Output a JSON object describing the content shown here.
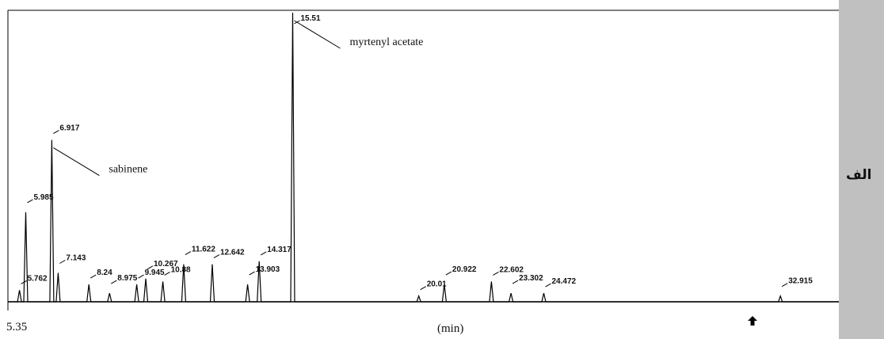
{
  "chart_data": {
    "type": "line",
    "x_start_label": "5.35",
    "x_unit_label": "(min)",
    "panel_label": "الف",
    "peaks": [
      {
        "rt": 5.762,
        "label": "5.762",
        "height": 0.04
      },
      {
        "rt": 5.985,
        "label": "5.985",
        "height": 0.31
      },
      {
        "rt": 6.917,
        "label": "6.917",
        "height": 0.56,
        "annotation": "sabinene"
      },
      {
        "rt": 7.143,
        "label": "7.143",
        "height": 0.1
      },
      {
        "rt": 8.24,
        "label": "8.24",
        "height": 0.06
      },
      {
        "rt": 8.975,
        "label": "8.975",
        "height": 0.03
      },
      {
        "rt": 9.945,
        "label": "9.945",
        "height": 0.06
      },
      {
        "rt": 10.267,
        "label": "10.267",
        "height": 0.08
      },
      {
        "rt": 10.88,
        "label": "10.88",
        "height": 0.07
      },
      {
        "rt": 11.622,
        "label": "11.622",
        "height": 0.13
      },
      {
        "rt": 12.642,
        "label": "12.642",
        "height": 0.13
      },
      {
        "rt": 13.903,
        "label": "13.903",
        "height": 0.06
      },
      {
        "rt": 14.317,
        "label": "14.317",
        "height": 0.14
      },
      {
        "rt": 15.51,
        "label": "15.51",
        "height": 1.0,
        "annotation": "myrtenyl acetate"
      },
      {
        "rt": 20.01,
        "label": "20.01",
        "height": 0.02
      },
      {
        "rt": 20.922,
        "label": "20.922",
        "height": 0.06
      },
      {
        "rt": 22.602,
        "label": "22.602",
        "height": 0.07
      },
      {
        "rt": 23.302,
        "label": "23.302",
        "height": 0.03
      },
      {
        "rt": 24.472,
        "label": "24.472",
        "height": 0.03
      },
      {
        "rt": 32.915,
        "label": "32.915",
        "height": 0.02
      }
    ],
    "x_range": [
      5.35,
      35.0
    ],
    "y_range": [
      0,
      1.0
    ],
    "grid": false
  }
}
